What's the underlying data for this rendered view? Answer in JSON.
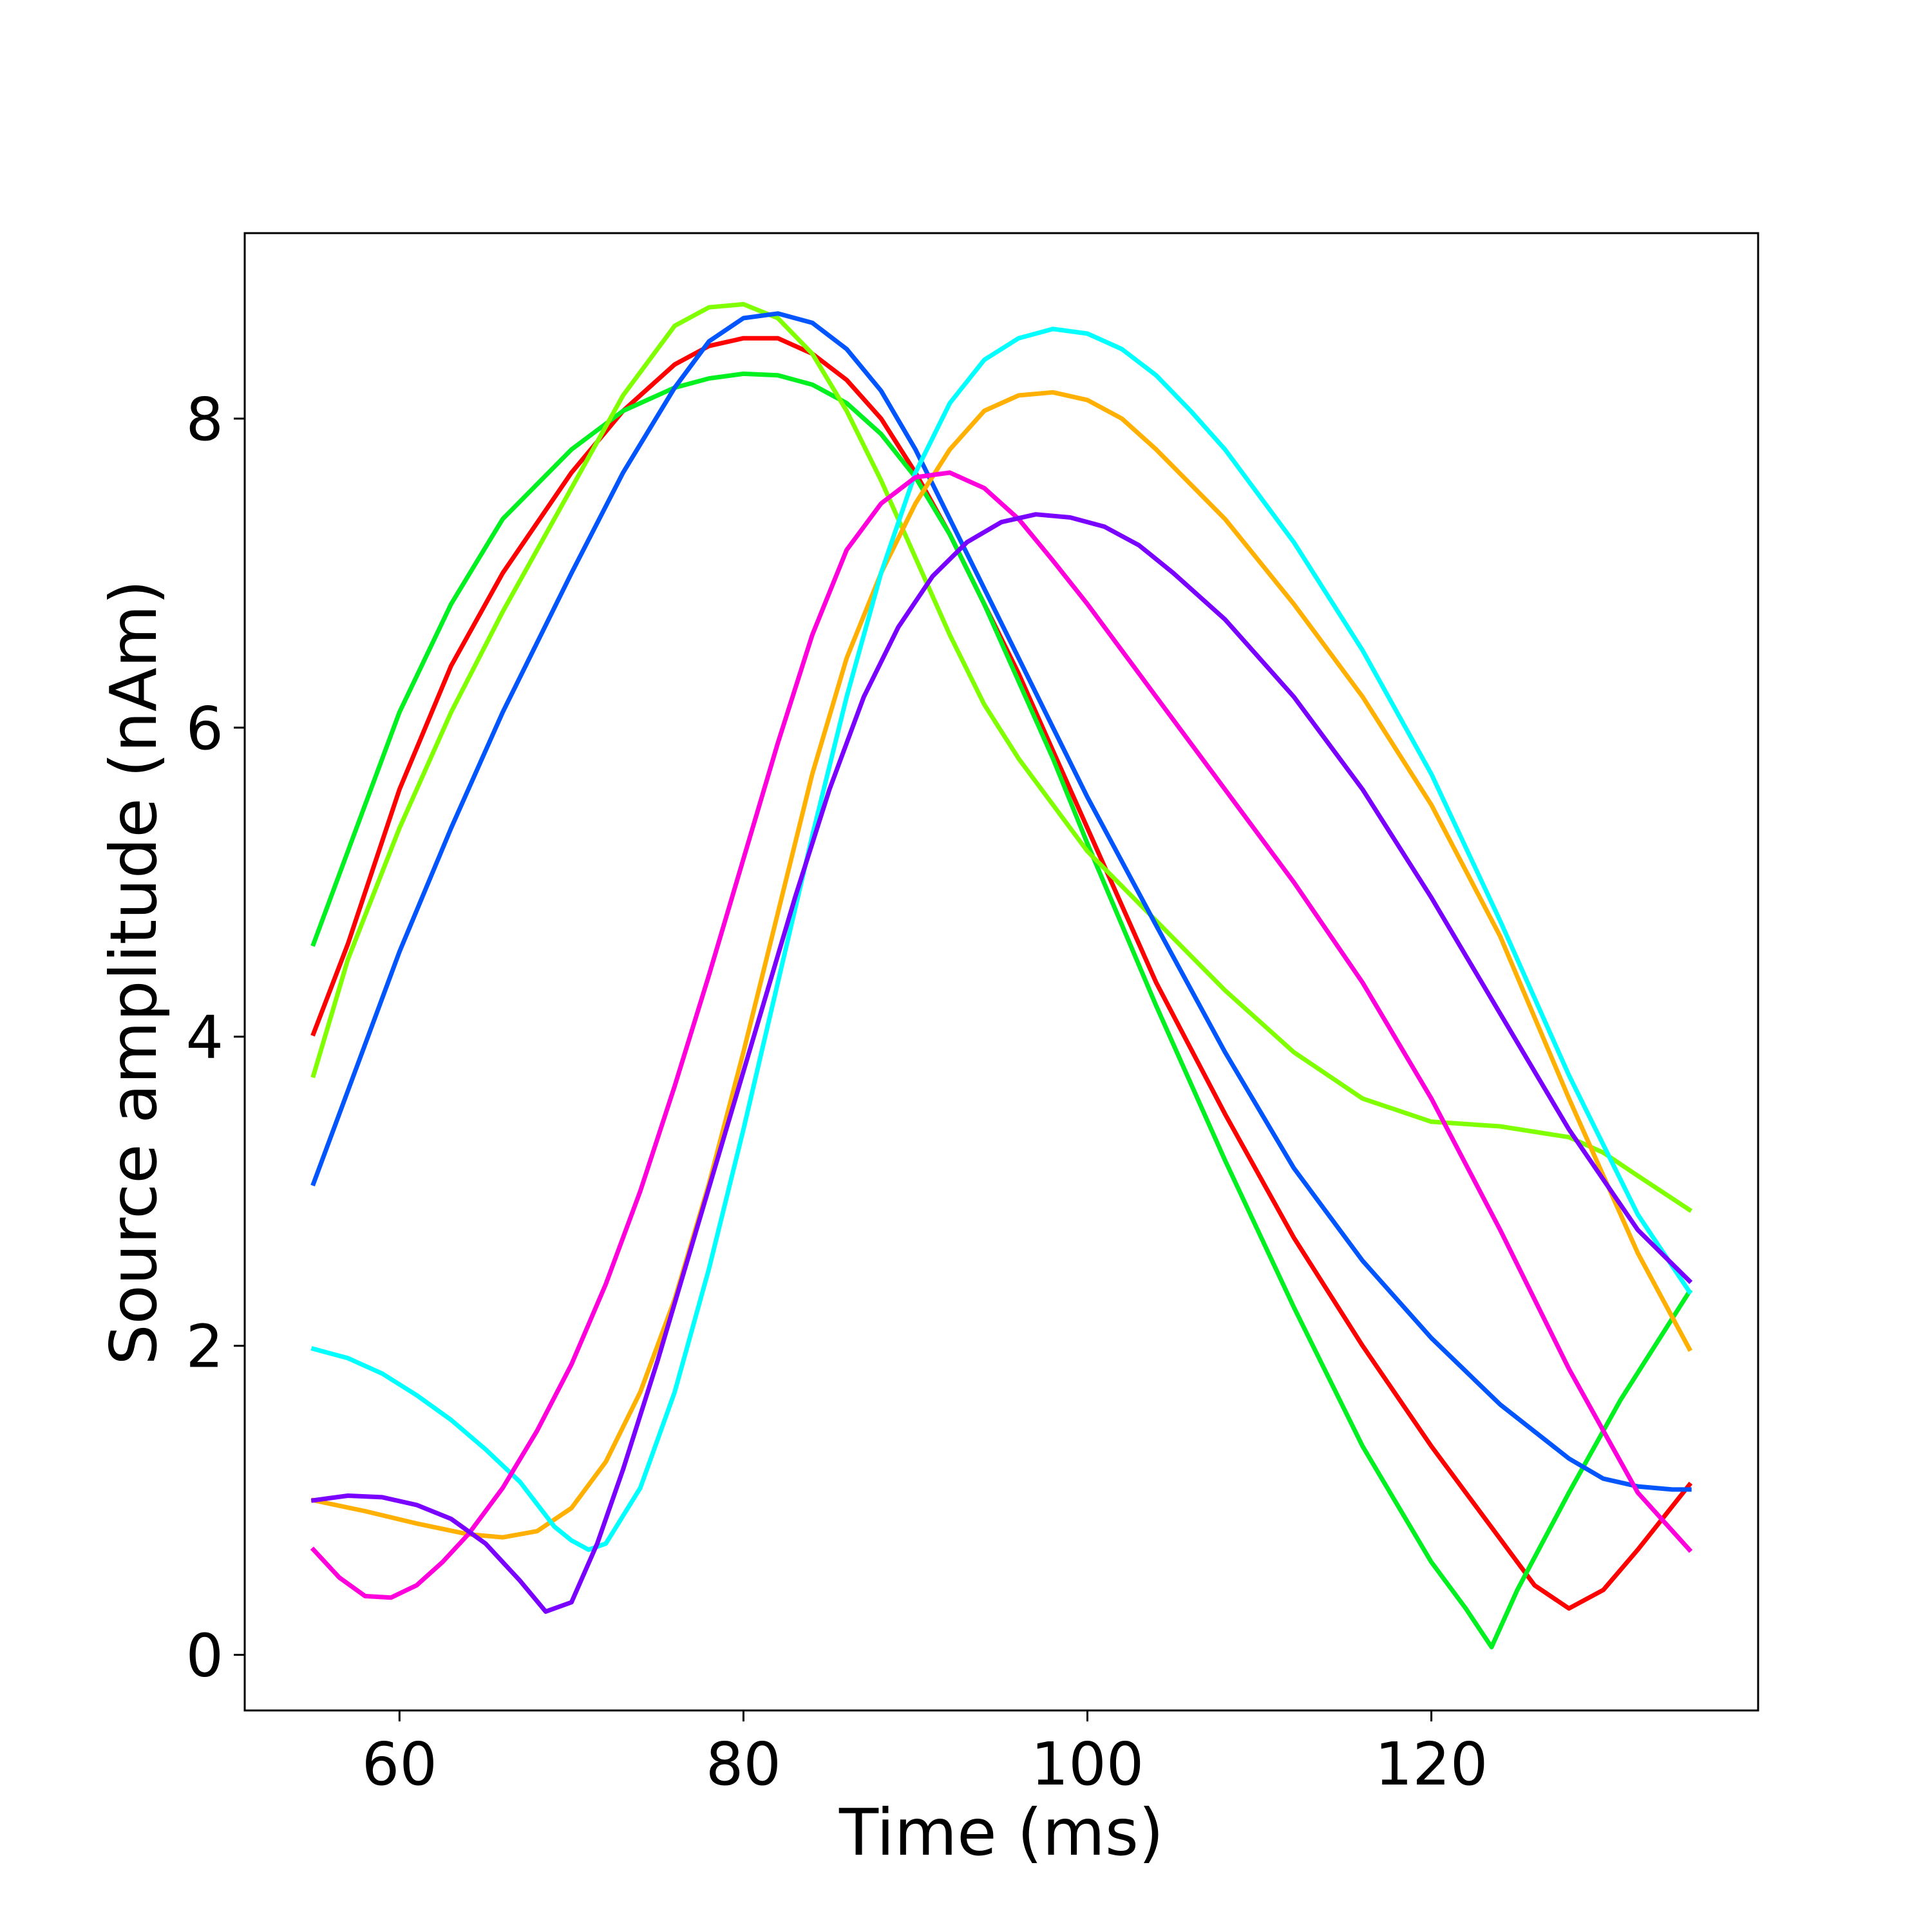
{
  "chart_data": {
    "type": "line",
    "title": "",
    "xlabel": "Time (ms)",
    "ylabel": "Source amplitude (nAm)",
    "xlim": [
      51,
      139
    ],
    "ylim": [
      -0.36,
      9.2
    ],
    "xticks": [
      60,
      80,
      100,
      120
    ],
    "yticks": [
      0,
      2,
      4,
      6,
      8
    ],
    "grid": false,
    "legend": "none",
    "series": [
      {
        "color": "#ff0000",
        "x": [
          55,
          57,
          60,
          63,
          66,
          70,
          73,
          76,
          78,
          80,
          82,
          84,
          86,
          88,
          90,
          92,
          94,
          96,
          98,
          100,
          104,
          108,
          112,
          116,
          120,
          124,
          126,
          128,
          130,
          132,
          135
        ],
        "y": [
          4.02,
          4.6,
          5.6,
          6.4,
          7.0,
          7.65,
          8.05,
          8.35,
          8.47,
          8.52,
          8.52,
          8.42,
          8.25,
          8.0,
          7.65,
          7.25,
          6.8,
          6.35,
          5.85,
          5.35,
          4.35,
          3.5,
          2.7,
          2.0,
          1.35,
          0.75,
          0.45,
          0.3,
          0.42,
          0.68,
          1.1
        ]
      },
      {
        "color": "#00f020",
        "x": [
          55,
          57,
          60,
          63,
          66,
          70,
          73,
          76,
          78,
          80,
          82,
          84,
          86,
          88,
          90,
          92,
          94,
          96,
          98,
          100,
          104,
          108,
          112,
          116,
          120,
          122,
          123.5,
          125,
          128,
          131,
          135
        ],
        "y": [
          4.6,
          5.2,
          6.1,
          6.8,
          7.35,
          7.8,
          8.05,
          8.2,
          8.26,
          8.29,
          8.28,
          8.22,
          8.1,
          7.9,
          7.62,
          7.25,
          6.8,
          6.3,
          5.8,
          5.25,
          4.2,
          3.2,
          2.25,
          1.35,
          0.6,
          0.3,
          0.05,
          0.42,
          1.05,
          1.65,
          2.35
        ]
      },
      {
        "color": "#80ff00",
        "x": [
          55,
          57,
          60,
          63,
          66,
          70,
          73,
          76,
          78,
          80,
          82,
          84,
          86,
          88,
          90,
          92,
          94,
          96,
          98,
          100,
          104,
          108,
          112,
          116,
          120,
          124,
          128,
          130,
          132,
          135
        ],
        "y": [
          3.75,
          4.5,
          5.35,
          6.1,
          6.75,
          7.55,
          8.15,
          8.6,
          8.72,
          8.74,
          8.65,
          8.42,
          8.05,
          7.6,
          7.1,
          6.6,
          6.15,
          5.8,
          5.5,
          5.2,
          4.75,
          4.3,
          3.9,
          3.6,
          3.45,
          3.42,
          3.35,
          3.25,
          3.1,
          2.88
        ]
      },
      {
        "color": "#0055ff",
        "x": [
          55,
          57,
          60,
          63,
          66,
          70,
          73,
          76,
          78,
          80,
          82,
          84,
          86,
          88,
          90,
          92,
          94,
          96,
          98,
          100,
          104,
          108,
          112,
          116,
          120,
          124,
          128,
          130,
          132,
          134,
          135
        ],
        "y": [
          3.05,
          3.65,
          4.55,
          5.35,
          6.1,
          7.0,
          7.65,
          8.2,
          8.5,
          8.65,
          8.68,
          8.62,
          8.45,
          8.18,
          7.8,
          7.35,
          6.9,
          6.45,
          6.0,
          5.55,
          4.72,
          3.9,
          3.15,
          2.55,
          2.05,
          1.62,
          1.27,
          1.14,
          1.09,
          1.07,
          1.07
        ]
      },
      {
        "color": "#ffb000",
        "x": [
          55,
          58,
          61,
          64,
          66,
          68,
          70,
          72,
          74,
          76,
          78,
          80,
          82,
          84,
          86,
          88,
          90,
          92,
          94,
          96,
          98,
          100,
          102,
          104,
          108,
          112,
          116,
          120,
          124,
          128,
          132,
          135
        ],
        "y": [
          1.0,
          0.93,
          0.85,
          0.78,
          0.76,
          0.8,
          0.95,
          1.25,
          1.7,
          2.3,
          3.05,
          3.9,
          4.8,
          5.7,
          6.45,
          7.0,
          7.45,
          7.8,
          8.05,
          8.15,
          8.17,
          8.12,
          8.0,
          7.8,
          7.35,
          6.8,
          6.2,
          5.5,
          4.65,
          3.6,
          2.6,
          1.98
        ]
      },
      {
        "color": "#00ffff",
        "x": [
          55,
          57,
          59,
          61,
          63,
          65,
          67,
          69,
          70,
          71,
          72,
          74,
          76,
          78,
          80,
          82,
          84,
          86,
          88,
          90,
          92,
          94,
          96,
          98,
          100,
          102,
          104,
          106,
          108,
          112,
          116,
          120,
          124,
          128,
          132,
          135
        ],
        "y": [
          1.98,
          1.92,
          1.82,
          1.68,
          1.52,
          1.33,
          1.12,
          0.83,
          0.74,
          0.68,
          0.72,
          1.08,
          1.7,
          2.5,
          3.4,
          4.35,
          5.3,
          6.2,
          7.0,
          7.65,
          8.1,
          8.38,
          8.52,
          8.58,
          8.55,
          8.45,
          8.28,
          8.05,
          7.8,
          7.2,
          6.5,
          5.7,
          4.75,
          3.75,
          2.85,
          2.35
        ]
      },
      {
        "color": "#ff00dd",
        "x": [
          55,
          56.5,
          58,
          59.5,
          61,
          62.5,
          64,
          66,
          68,
          70,
          72,
          74,
          76,
          78,
          80,
          82,
          84,
          86,
          88,
          90,
          92,
          94,
          96,
          98,
          100,
          102,
          104,
          108,
          112,
          116,
          120,
          124,
          128,
          132,
          135
        ],
        "y": [
          0.68,
          0.5,
          0.38,
          0.37,
          0.45,
          0.6,
          0.78,
          1.08,
          1.45,
          1.88,
          2.4,
          3.0,
          3.68,
          4.4,
          5.15,
          5.9,
          6.6,
          7.15,
          7.45,
          7.62,
          7.65,
          7.55,
          7.35,
          7.08,
          6.8,
          6.5,
          6.2,
          5.6,
          5.0,
          4.35,
          3.6,
          2.75,
          1.85,
          1.05,
          0.68
        ]
      },
      {
        "color": "#7a00ff",
        "x": [
          55,
          57,
          59,
          61,
          63,
          65,
          67,
          68.5,
          70,
          71.5,
          73,
          75,
          77,
          79,
          81,
          83,
          85,
          87,
          89,
          91,
          93,
          95,
          97,
          99,
          101,
          103,
          105,
          108,
          112,
          116,
          120,
          124,
          128,
          132,
          135
        ],
        "y": [
          1.0,
          1.03,
          1.02,
          0.97,
          0.88,
          0.72,
          0.48,
          0.28,
          0.34,
          0.72,
          1.2,
          1.9,
          2.65,
          3.4,
          4.15,
          4.9,
          5.6,
          6.2,
          6.65,
          6.98,
          7.2,
          7.33,
          7.38,
          7.36,
          7.3,
          7.18,
          7.0,
          6.7,
          6.2,
          5.6,
          4.9,
          4.15,
          3.4,
          2.75,
          2.42
        ]
      }
    ]
  }
}
